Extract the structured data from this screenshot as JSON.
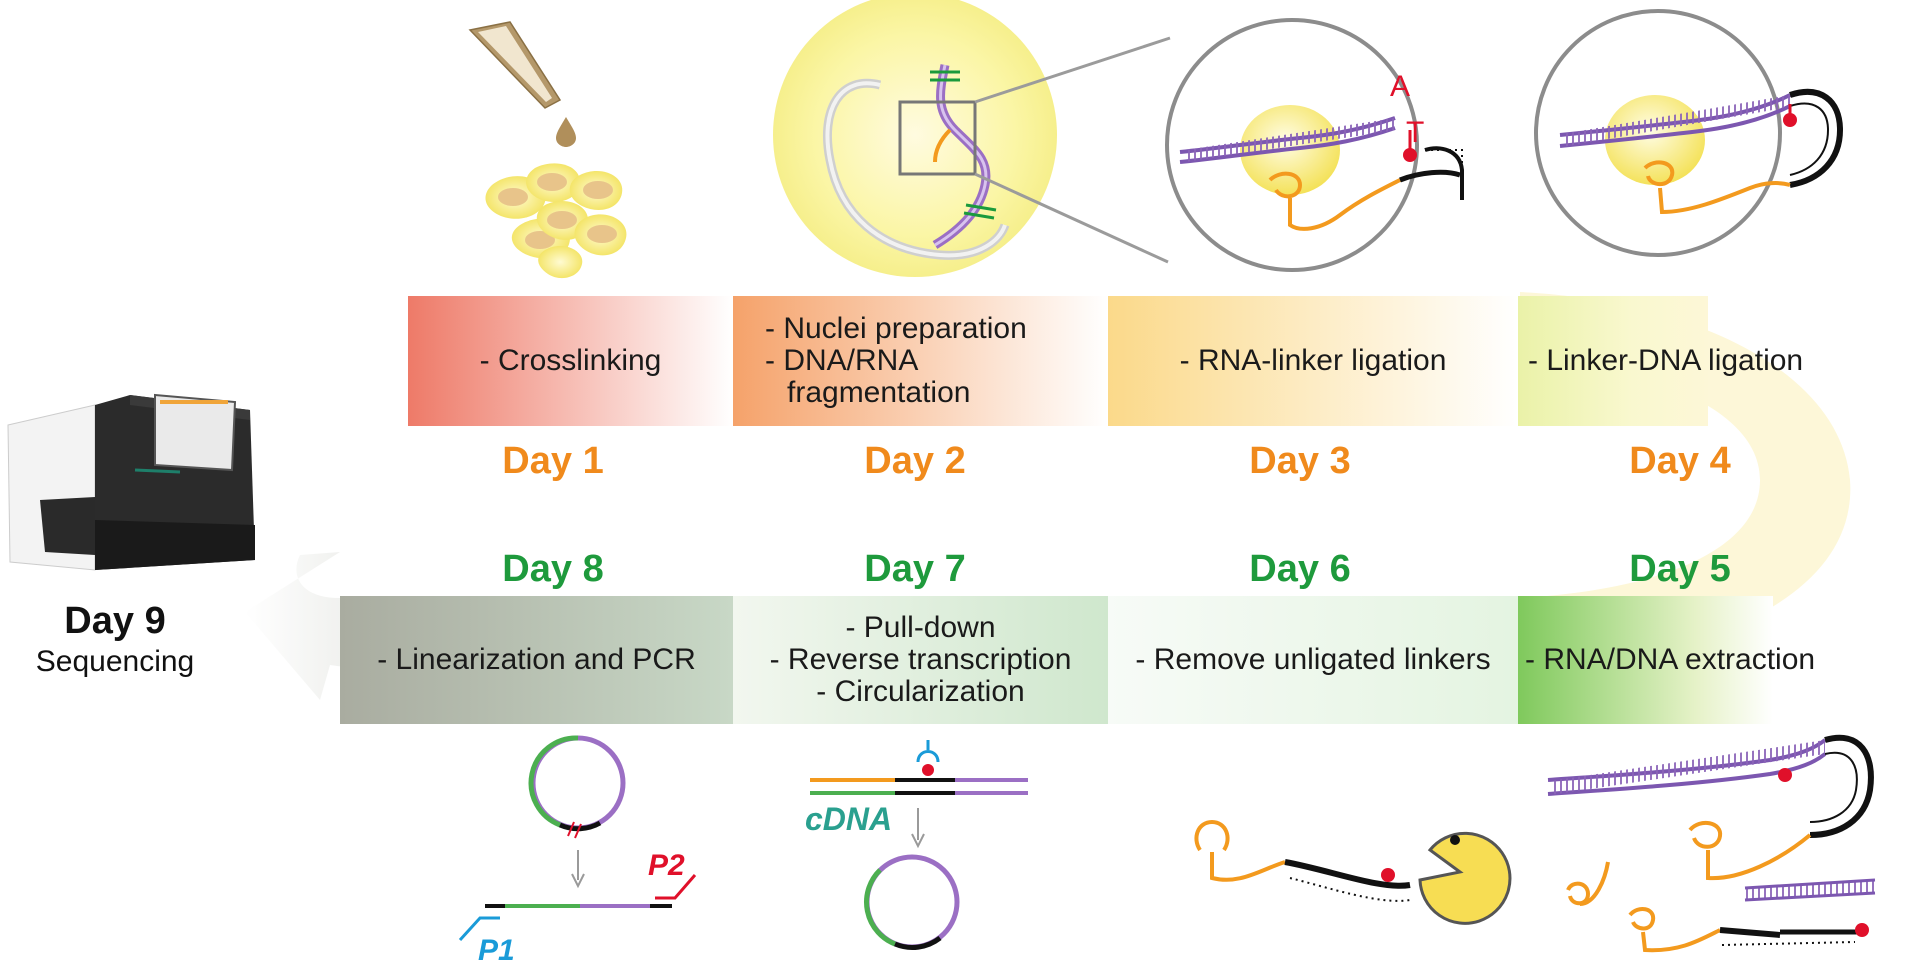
{
  "steps": [
    {
      "day": "Day 1",
      "lines": [
        "- Crosslinking"
      ]
    },
    {
      "day": "Day 2",
      "lines": [
        "- Nuclei preparation",
        "- DNA/RNA",
        "fragmentation"
      ]
    },
    {
      "day": "Day 3",
      "lines": [
        "- RNA-linker ligation"
      ]
    },
    {
      "day": "Day 4",
      "lines": [
        "- Linker-DNA ligation"
      ]
    },
    {
      "day": "Day 5",
      "lines": [
        "- RNA/DNA extraction"
      ]
    },
    {
      "day": "Day 6",
      "lines": [
        "- Remove unligated linkers"
      ]
    },
    {
      "day": "Day 7",
      "lines": [
        "- Pull-down",
        "- Reverse transcription",
        "- Circularization"
      ]
    },
    {
      "day": "Day 8",
      "lines": [
        "- Linearization and PCR"
      ]
    }
  ],
  "final": {
    "day": "Day 9",
    "label": "Sequencing"
  },
  "annotations": {
    "base_a": "A",
    "base_t": "T",
    "cdna": "cDNA",
    "primer_1": "P1",
    "primer_2": "P2"
  },
  "colors": {
    "day_top": "#f08a1c",
    "day_bottom": "#1e9a3c",
    "rna": "#f39a1e",
    "dna": "#9b6fc4",
    "linker": "#111111",
    "biotin": "#e0102a",
    "circle_green": "#4caf50",
    "primer_blue": "#1a9bd8"
  }
}
